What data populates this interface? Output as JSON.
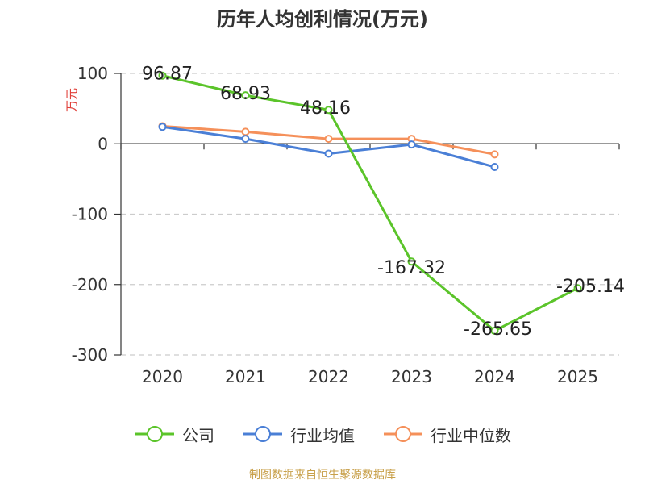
{
  "chart_data": {
    "type": "line",
    "title": "历年人均创利情况(万元)",
    "ylabel": "万元",
    "categories": [
      "2020",
      "2021",
      "2022",
      "2023",
      "2024",
      "2025"
    ],
    "ylim": [
      -300,
      100
    ],
    "yticks": [
      100,
      0,
      -100,
      -200,
      -300
    ],
    "ytick_labels": [
      "100",
      "0",
      "-100",
      "-200",
      "-300"
    ],
    "grid": "horizontal-dashed",
    "legend_position": "bottom",
    "series": [
      {
        "name": "公司",
        "color": "#5bc42a",
        "values": [
          96.87,
          68.93,
          48.16,
          -167.32,
          -265.65,
          -205.14
        ],
        "data_labels": [
          "96.87",
          "68.93",
          "48.16",
          "-167.32",
          "-265.65",
          "-205.14"
        ]
      },
      {
        "name": "行业均值",
        "color": "#4a7fd6",
        "values": [
          24,
          7,
          -14,
          -1,
          -33,
          null
        ]
      },
      {
        "name": "行业中位数",
        "color": "#f5905a",
        "values": [
          25,
          17,
          7,
          7,
          -15,
          null
        ]
      }
    ]
  },
  "source_note": "制图数据来自恒生聚源数据库"
}
